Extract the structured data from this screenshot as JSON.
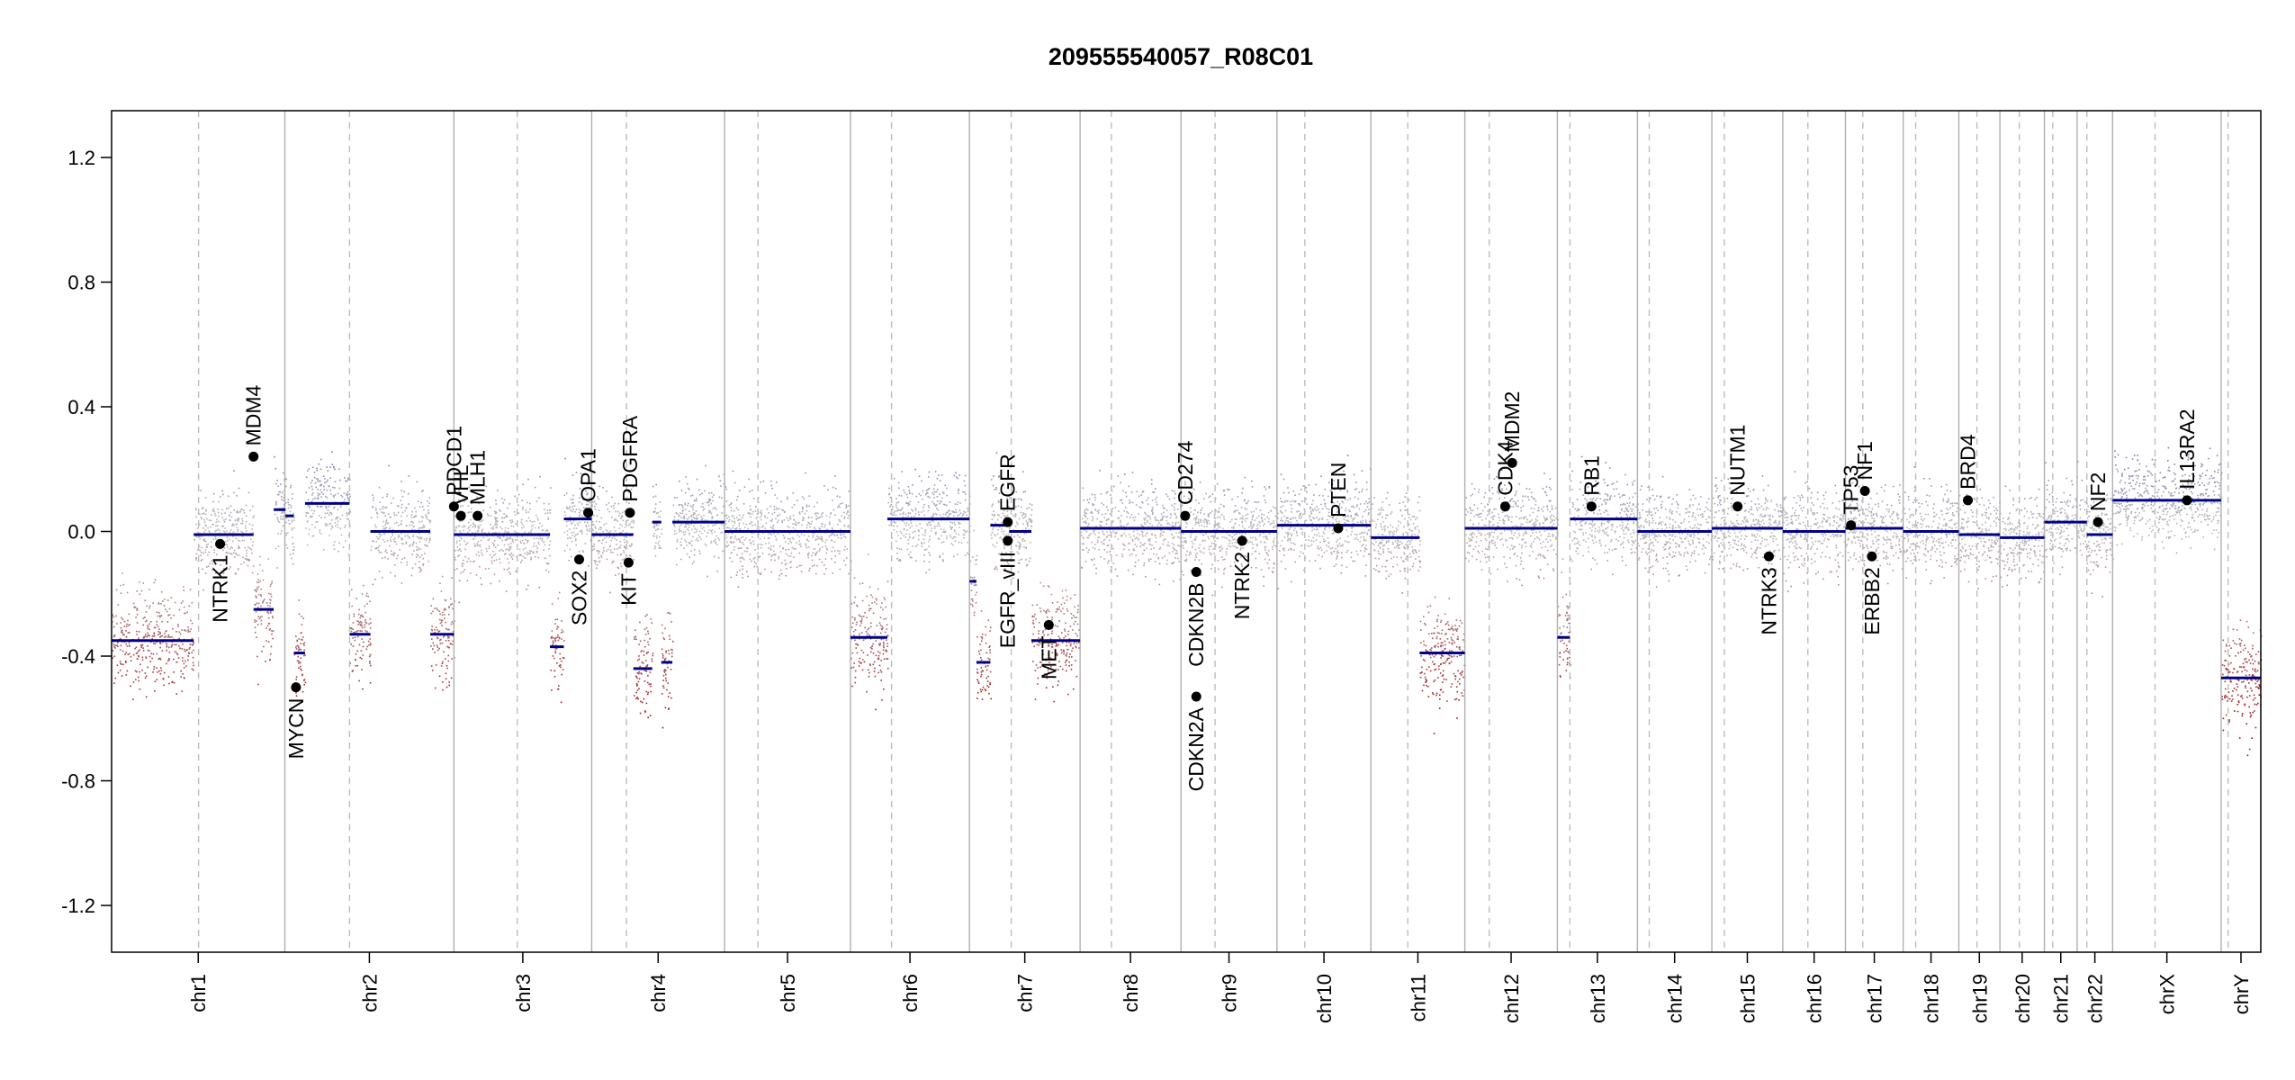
{
  "chart_data": {
    "type": "scatter",
    "title": "209555540057_R08C01",
    "xlabel": "",
    "ylabel": "",
    "ylim": [
      -1.35,
      1.35
    ],
    "yticks": [
      -1.2,
      -0.8,
      -0.4,
      0.0,
      0.4,
      0.8,
      1.2
    ],
    "ytick_labels": [
      "-1.2",
      "-0.8",
      "-0.4",
      "0.0",
      "0.4",
      "0.8",
      "1.2"
    ],
    "grid": false,
    "chromosomes": [
      {
        "name": "chr1",
        "start": 0,
        "end": 249,
        "centromere": 125
      },
      {
        "name": "chr2",
        "start": 249,
        "end": 492,
        "centromere": 342
      },
      {
        "name": "chr3",
        "start": 492,
        "end": 690,
        "centromere": 583
      },
      {
        "name": "chr4",
        "start": 690,
        "end": 881,
        "centromere": 740
      },
      {
        "name": "chr5",
        "start": 881,
        "end": 1062,
        "centromere": 929
      },
      {
        "name": "chr6",
        "start": 1062,
        "end": 1233,
        "centromere": 1121
      },
      {
        "name": "chr7",
        "start": 1233,
        "end": 1392,
        "centromere": 1293
      },
      {
        "name": "chr8",
        "start": 1392,
        "end": 1537,
        "centromere": 1437
      },
      {
        "name": "chr9",
        "start": 1537,
        "end": 1675,
        "centromere": 1586
      },
      {
        "name": "chr10",
        "start": 1675,
        "end": 1810,
        "centromere": 1715
      },
      {
        "name": "chr11",
        "start": 1810,
        "end": 1945,
        "centromere": 1863
      },
      {
        "name": "chr12",
        "start": 1945,
        "end": 2078,
        "centromere": 1980
      },
      {
        "name": "chr13",
        "start": 2078,
        "end": 2193,
        "centromere": 2096
      },
      {
        "name": "chr14",
        "start": 2193,
        "end": 2300,
        "centromere": 2210
      },
      {
        "name": "chr15",
        "start": 2300,
        "end": 2402,
        "centromere": 2318
      },
      {
        "name": "chr16",
        "start": 2402,
        "end": 2492,
        "centromere": 2438
      },
      {
        "name": "chr17",
        "start": 2492,
        "end": 2575,
        "centromere": 2517
      },
      {
        "name": "chr18",
        "start": 2575,
        "end": 2655,
        "centromere": 2593
      },
      {
        "name": "chr19",
        "start": 2655,
        "end": 2714,
        "centromere": 2681
      },
      {
        "name": "chr20",
        "start": 2714,
        "end": 2778,
        "centromere": 2742
      },
      {
        "name": "chr21",
        "start": 2778,
        "end": 2825,
        "centromere": 2790
      },
      {
        "name": "chr22",
        "start": 2825,
        "end": 2876,
        "centromere": 2839
      },
      {
        "name": "chrX",
        "start": 2876,
        "end": 3032,
        "centromere": 2937
      },
      {
        "name": "chrY",
        "start": 3032,
        "end": 3089,
        "centromere": 3042
      }
    ],
    "segments": [
      {
        "x0": 0,
        "x1": 118,
        "y": -0.35
      },
      {
        "x0": 118,
        "x1": 204,
        "y": -0.01
      },
      {
        "x0": 204,
        "x1": 233,
        "y": -0.25
      },
      {
        "x0": 233,
        "x1": 250,
        "y": 0.07
      },
      {
        "x0": 250,
        "x1": 262,
        "y": 0.05
      },
      {
        "x0": 262,
        "x1": 278,
        "y": -0.39
      },
      {
        "x0": 278,
        "x1": 342,
        "y": 0.09
      },
      {
        "x0": 342,
        "x1": 372,
        "y": -0.33
      },
      {
        "x0": 372,
        "x1": 458,
        "y": 0.0
      },
      {
        "x0": 458,
        "x1": 492,
        "y": -0.33
      },
      {
        "x0": 492,
        "x1": 630,
        "y": -0.01
      },
      {
        "x0": 630,
        "x1": 650,
        "y": -0.37
      },
      {
        "x0": 650,
        "x1": 690,
        "y": 0.04
      },
      {
        "x0": 690,
        "x1": 750,
        "y": -0.01
      },
      {
        "x0": 750,
        "x1": 777,
        "y": -0.44
      },
      {
        "x0": 777,
        "x1": 790,
        "y": 0.03
      },
      {
        "x0": 790,
        "x1": 806,
        "y": -0.42
      },
      {
        "x0": 806,
        "x1": 881,
        "y": 0.03
      },
      {
        "x0": 881,
        "x1": 1062,
        "y": 0.0
      },
      {
        "x0": 1062,
        "x1": 1115,
        "y": -0.34
      },
      {
        "x0": 1115,
        "x1": 1233,
        "y": 0.04
      },
      {
        "x0": 1233,
        "x1": 1243,
        "y": -0.16
      },
      {
        "x0": 1243,
        "x1": 1263,
        "y": -0.42
      },
      {
        "x0": 1263,
        "x1": 1290,
        "y": 0.02
      },
      {
        "x0": 1290,
        "x1": 1322,
        "y": 0.0
      },
      {
        "x0": 1322,
        "x1": 1392,
        "y": -0.35
      },
      {
        "x0": 1392,
        "x1": 1537,
        "y": 0.01
      },
      {
        "x0": 1537,
        "x1": 1675,
        "y": 0.0
      },
      {
        "x0": 1675,
        "x1": 1810,
        "y": 0.02
      },
      {
        "x0": 1810,
        "x1": 1880,
        "y": -0.02
      },
      {
        "x0": 1880,
        "x1": 1945,
        "y": -0.39
      },
      {
        "x0": 1945,
        "x1": 2078,
        "y": 0.01
      },
      {
        "x0": 2078,
        "x1": 2096,
        "y": -0.34
      },
      {
        "x0": 2096,
        "x1": 2193,
        "y": 0.04
      },
      {
        "x0": 2193,
        "x1": 2300,
        "y": 0.0
      },
      {
        "x0": 2300,
        "x1": 2402,
        "y": 0.01
      },
      {
        "x0": 2402,
        "x1": 2492,
        "y": 0.0
      },
      {
        "x0": 2492,
        "x1": 2575,
        "y": 0.01
      },
      {
        "x0": 2575,
        "x1": 2655,
        "y": 0.0
      },
      {
        "x0": 2655,
        "x1": 2714,
        "y": -0.01
      },
      {
        "x0": 2714,
        "x1": 2778,
        "y": -0.02
      },
      {
        "x0": 2778,
        "x1": 2825,
        "y": 0.03
      },
      {
        "x0": 2825,
        "x1": 2839,
        "y": 0.03
      },
      {
        "x0": 2839,
        "x1": 2876,
        "y": -0.01
      },
      {
        "x0": 2876,
        "x1": 3032,
        "y": 0.1
      },
      {
        "x0": 3032,
        "x1": 3089,
        "y": -0.47
      }
    ],
    "genes": [
      {
        "name": "NTRK1",
        "x": 156,
        "y": -0.04,
        "side": "below"
      },
      {
        "name": "MDM4",
        "x": 204,
        "y": 0.24,
        "side": "above"
      },
      {
        "name": "MYCN",
        "x": 265,
        "y": -0.5,
        "side": "below"
      },
      {
        "name": "PDCD1",
        "x": 492,
        "y": 0.08,
        "side": "above"
      },
      {
        "name": "VHL",
        "x": 502,
        "y": 0.05,
        "side": "above"
      },
      {
        "name": "MLH1",
        "x": 526,
        "y": 0.05,
        "side": "above"
      },
      {
        "name": "SOX2",
        "x": 672,
        "y": -0.09,
        "side": "below"
      },
      {
        "name": "OPA1",
        "x": 685,
        "y": 0.06,
        "side": "above"
      },
      {
        "name": "KIT",
        "x": 743,
        "y": -0.1,
        "side": "below"
      },
      {
        "name": "PDGFRA",
        "x": 745,
        "y": 0.06,
        "side": "above"
      },
      {
        "name": "EGFR_vIII",
        "x": 1288,
        "y": -0.03,
        "side": "below"
      },
      {
        "name": "EGFR",
        "x": 1288,
        "y": 0.03,
        "side": "above"
      },
      {
        "name": "MET",
        "x": 1347,
        "y": -0.3,
        "side": "below"
      },
      {
        "name": "CD274",
        "x": 1543,
        "y": 0.05,
        "side": "above"
      },
      {
        "name": "CDKN2A",
        "x": 1559,
        "y": -0.53,
        "side": "below"
      },
      {
        "name": "CDKN2B",
        "x": 1559,
        "y": -0.13,
        "side": "below"
      },
      {
        "name": "NTRK2",
        "x": 1625,
        "y": -0.03,
        "side": "below"
      },
      {
        "name": "PTEN",
        "x": 1763,
        "y": 0.01,
        "side": "above"
      },
      {
        "name": "CDK4",
        "x": 2003,
        "y": 0.08,
        "side": "above"
      },
      {
        "name": "MDM2",
        "x": 2013,
        "y": 0.22,
        "side": "above"
      },
      {
        "name": "RB1",
        "x": 2127,
        "y": 0.08,
        "side": "above"
      },
      {
        "name": "NUTM1",
        "x": 2337,
        "y": 0.08,
        "side": "above"
      },
      {
        "name": "NTRK3",
        "x": 2382,
        "y": -0.08,
        "side": "below"
      },
      {
        "name": "TP53",
        "x": 2500,
        "y": 0.02,
        "side": "above"
      },
      {
        "name": "NF1",
        "x": 2520,
        "y": 0.13,
        "side": "above"
      },
      {
        "name": "ERBB2",
        "x": 2530,
        "y": -0.08,
        "side": "below"
      },
      {
        "name": "BRD4",
        "x": 2668,
        "y": 0.1,
        "side": "above"
      },
      {
        "name": "NF2",
        "x": 2855,
        "y": 0.03,
        "side": "above"
      },
      {
        "name": "IL13RA2",
        "x": 2983,
        "y": 0.1,
        "side": "above"
      }
    ],
    "colors": {
      "segment": "#00008b",
      "gain": "#3b3ba8",
      "neutral": "#b4b4b4",
      "loss": "#a61c1c",
      "border": "#b0b0b0",
      "centromere": "#bdbdbd",
      "gene_point": "#000000"
    }
  }
}
